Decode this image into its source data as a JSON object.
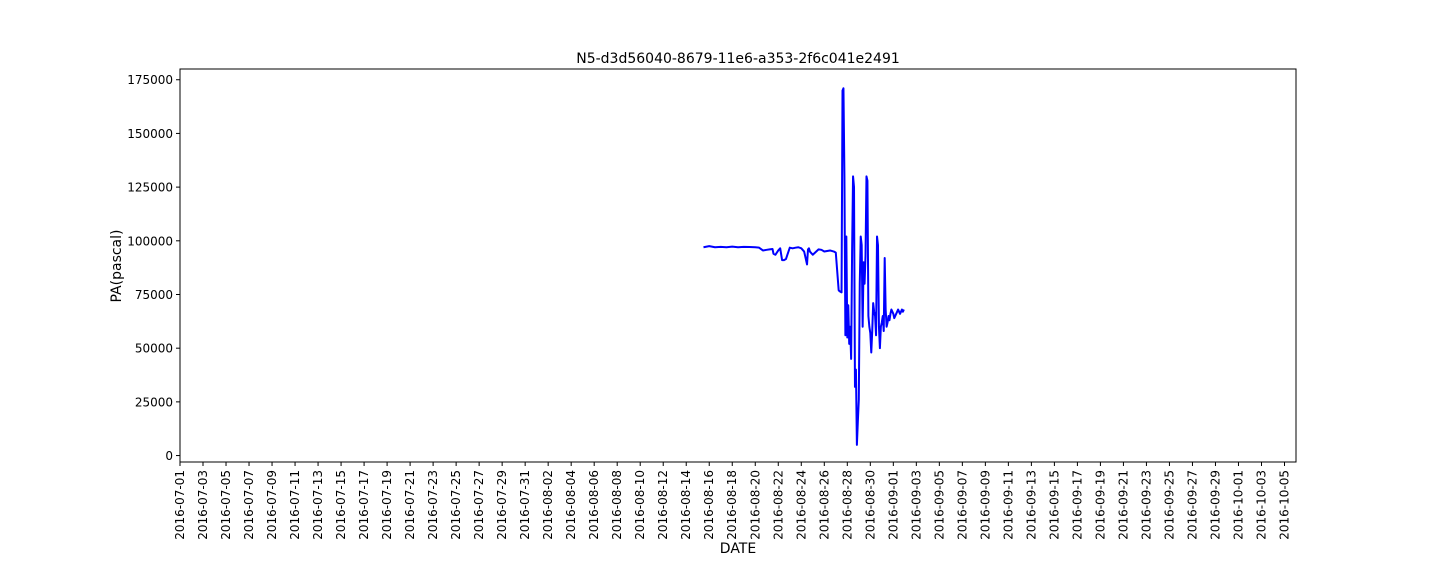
{
  "chart_data": {
    "type": "line",
    "title": "N5-d3d56040-8679-11e6-a353-2f6c041e2491",
    "xlabel": "DATE",
    "ylabel": "PA(pascal)",
    "ylim": [
      -3000,
      180000
    ],
    "xlim": [
      "2016-07-01",
      "2016-10-06"
    ],
    "yticks": [
      0,
      25000,
      50000,
      75000,
      100000,
      125000,
      150000,
      175000
    ],
    "xticks": [
      "2016-07-01",
      "2016-07-03",
      "2016-07-05",
      "2016-07-07",
      "2016-07-09",
      "2016-07-11",
      "2016-07-13",
      "2016-07-15",
      "2016-07-17",
      "2016-07-19",
      "2016-07-21",
      "2016-07-23",
      "2016-07-25",
      "2016-07-27",
      "2016-07-29",
      "2016-07-31",
      "2016-08-02",
      "2016-08-04",
      "2016-08-06",
      "2016-08-08",
      "2016-08-10",
      "2016-08-12",
      "2016-08-14",
      "2016-08-16",
      "2016-08-18",
      "2016-08-20",
      "2016-08-22",
      "2016-08-24",
      "2016-08-26",
      "2016-08-28",
      "2016-08-30",
      "2016-09-01",
      "2016-09-03",
      "2016-09-05",
      "2016-09-07",
      "2016-09-09",
      "2016-09-11",
      "2016-09-13",
      "2016-09-15",
      "2016-09-17",
      "2016-09-19",
      "2016-09-21",
      "2016-09-23",
      "2016-09-25",
      "2016-09-27",
      "2016-09-29",
      "2016-10-01",
      "2016-10-03",
      "2016-10-05"
    ],
    "grid": false,
    "color": "#0000ff",
    "series": [
      {
        "x": [
          "2016-08-15T12:00",
          "2016-08-16T00:00",
          "2016-08-16T12:00",
          "2016-08-17T00:00",
          "2016-08-17T12:00",
          "2016-08-18T00:00",
          "2016-08-18T12:00",
          "2016-08-19T00:00",
          "2016-08-19T12:00",
          "2016-08-20T00:00",
          "2016-08-20T08:00",
          "2016-08-20T16:00",
          "2016-08-21T00:00",
          "2016-08-21T06:00",
          "2016-08-21T12:00",
          "2016-08-21T14:00",
          "2016-08-21T18:00",
          "2016-08-22T00:00",
          "2016-08-22T04:00",
          "2016-08-22T08:00",
          "2016-08-22T12:00",
          "2016-08-22T16:00",
          "2016-08-23T00:00",
          "2016-08-23T06:00",
          "2016-08-23T12:00",
          "2016-08-23T18:00",
          "2016-08-24T00:00",
          "2016-08-24T06:00",
          "2016-08-24T12:00",
          "2016-08-24T14:00",
          "2016-08-24T16:00",
          "2016-08-24T18:00",
          "2016-08-25T00:00",
          "2016-08-25T12:00",
          "2016-08-25T18:00",
          "2016-08-26T00:00",
          "2016-08-26T12:00",
          "2016-08-26T20:00",
          "2016-08-27T00:00",
          "2016-08-27T06:00",
          "2016-08-27T08:00",
          "2016-08-27T12:00",
          "2016-08-27T14:00",
          "2016-08-27T16:00",
          "2016-08-27T18:00",
          "2016-08-27T20:00",
          "2016-08-27T22:00",
          "2016-08-28T00:00",
          "2016-08-28T02:00",
          "2016-08-28T04:00",
          "2016-08-28T06:00",
          "2016-08-28T08:00",
          "2016-08-28T10:00",
          "2016-08-28T12:00",
          "2016-08-28T14:00",
          "2016-08-28T16:00",
          "2016-08-28T18:00",
          "2016-08-28T20:00",
          "2016-08-28T22:00",
          "2016-08-29T00:00",
          "2016-08-29T02:00",
          "2016-08-29T04:00",
          "2016-08-29T06:00",
          "2016-08-29T08:00",
          "2016-08-29T10:00",
          "2016-08-29T12:00",
          "2016-08-29T14:00",
          "2016-08-29T16:00",
          "2016-08-29T18:00",
          "2016-08-29T20:00",
          "2016-08-29T22:00",
          "2016-08-30T00:00",
          "2016-08-30T02:00",
          "2016-08-30T04:00",
          "2016-08-30T06:00",
          "2016-08-30T08:00",
          "2016-08-30T10:00",
          "2016-08-30T12:00",
          "2016-08-30T14:00",
          "2016-08-30T16:00",
          "2016-08-30T18:00",
          "2016-08-30T20:00",
          "2016-08-30T22:00",
          "2016-08-31T00:00",
          "2016-08-31T02:00",
          "2016-08-31T04:00",
          "2016-08-31T06:00",
          "2016-08-31T08:00",
          "2016-08-31T10:00",
          "2016-08-31T12:00",
          "2016-08-31T14:00",
          "2016-08-31T16:00",
          "2016-08-31T18:00",
          "2016-08-31T20:00",
          "2016-08-31T22:00",
          "2016-09-01T00:00",
          "2016-09-01T02:00",
          "2016-09-01T04:00",
          "2016-09-01T06:00",
          "2016-09-01T08:00",
          "2016-09-01T10:00",
          "2016-09-01T12:00",
          "2016-09-01T14:00",
          "2016-09-01T16:00",
          "2016-09-01T18:00",
          "2016-09-01T20:00",
          "2016-09-01T22:00"
        ],
        "y": [
          97000,
          97500,
          97000,
          97200,
          97000,
          97300,
          97000,
          97200,
          97100,
          97000,
          96800,
          95500,
          95800,
          96000,
          96200,
          94000,
          93500,
          95500,
          96500,
          91000,
          91000,
          91500,
          96800,
          96500,
          96800,
          97000,
          96500,
          95000,
          89000,
          96000,
          96500,
          95000,
          93500,
          96000,
          95800,
          95000,
          95500,
          95000,
          94500,
          77000,
          76500,
          76000,
          170000,
          171000,
          130000,
          56000,
          102000,
          55000,
          70000,
          52000,
          60000,
          45000,
          95000,
          130000,
          125000,
          32000,
          40000,
          5000,
          16000,
          26000,
          80000,
          102000,
          98000,
          60000,
          90000,
          80000,
          93000,
          130000,
          128000,
          65000,
          60000,
          57000,
          48000,
          58000,
          71000,
          67000,
          65000,
          56000,
          102000,
          98000,
          60000,
          50000,
          60000,
          62000,
          65000,
          58000,
          92000,
          68000,
          60000,
          62000,
          65000,
          63000,
          66000,
          68000,
          67000,
          66000,
          64000,
          65000,
          66000,
          67000,
          68000,
          67000,
          66000,
          67000,
          68000,
          67000,
          68000
        ]
      }
    ]
  }
}
